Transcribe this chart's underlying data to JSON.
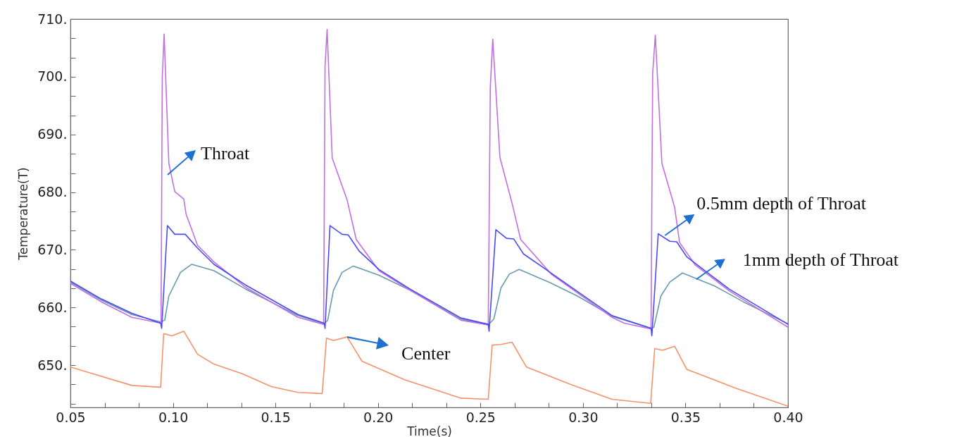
{
  "chart_data": {
    "type": "line",
    "xlabel": "Time(s)",
    "ylabel": "Temperature(T)",
    "xlim": [
      0.05,
      0.4
    ],
    "ylim": [
      642.7,
      710
    ],
    "grid": false,
    "xticks": [
      0.05,
      {
        "value": 0.0667,
        "label": null
      },
      {
        "value": 0.0833,
        "label": null
      },
      {
        "value": 0.1,
        "label": "0.10"
      },
      {
        "value": 0.1167,
        "label": null
      },
      {
        "value": 0.1333,
        "label": null
      },
      0.15,
      {
        "value": 0.1667,
        "label": null
      },
      {
        "value": 0.1833,
        "label": null
      },
      {
        "value": 0.2,
        "label": "0.20"
      },
      {
        "value": 0.2167,
        "label": null
      },
      {
        "value": 0.2333,
        "label": null
      },
      0.25,
      {
        "value": 0.2667,
        "label": null
      },
      {
        "value": 0.2833,
        "label": null
      },
      {
        "value": 0.3,
        "label": "0.30"
      },
      {
        "value": 0.3167,
        "label": null
      },
      {
        "value": 0.3333,
        "label": null
      },
      0.35,
      {
        "value": 0.3667,
        "label": null
      },
      {
        "value": 0.3833,
        "label": null
      },
      {
        "value": 0.4,
        "label": "0.40"
      }
    ],
    "yticks": [
      {
        "value": 643.3,
        "label": null
      },
      {
        "value": 646.7,
        "label": null
      },
      {
        "value": 650,
        "label": "650."
      },
      {
        "value": 653.3,
        "label": null
      },
      {
        "value": 656.7,
        "label": null
      },
      {
        "value": 660,
        "label": "660."
      },
      {
        "value": 663.3,
        "label": null
      },
      {
        "value": 666.7,
        "label": null
      },
      {
        "value": 670,
        "label": "670."
      },
      {
        "value": 673.3,
        "label": null
      },
      {
        "value": 676.7,
        "label": null
      },
      {
        "value": 680,
        "label": "680."
      },
      {
        "value": 683.3,
        "label": null
      },
      {
        "value": 686.7,
        "label": null
      },
      {
        "value": 690,
        "label": "690."
      },
      {
        "value": 693.3,
        "label": null
      },
      {
        "value": 696.7,
        "label": null
      },
      {
        "value": 700,
        "label": "700."
      },
      {
        "value": 703.3,
        "label": null
      },
      {
        "value": 706.7,
        "label": null
      },
      {
        "value": 710,
        "label": "710."
      }
    ],
    "series": [
      {
        "color": "#6a9ab0",
        "x": [
          0.05,
          0.065,
          0.08,
          0.094,
          0.096,
          0.098,
          0.1037,
          0.1092,
          0.12,
          0.1355,
          0.161,
          0.1738,
          0.1755,
          0.1783,
          0.1825,
          0.188,
          0.2005,
          0.2157,
          0.2405,
          0.2538,
          0.2565,
          0.26,
          0.2641,
          0.2689,
          0.2834,
          0.2973,
          0.3142,
          0.3332,
          0.3346,
          0.338,
          0.3423,
          0.3485,
          0.3644,
          0.3782,
          0.4
        ],
        "values": [
          664.4,
          661.3,
          658.8,
          657.5,
          657.8,
          662,
          666.1,
          667.5,
          666.4,
          663.2,
          658.6,
          657.2,
          657.8,
          663,
          666.1,
          667.2,
          665.6,
          663,
          658,
          657,
          658,
          663.4,
          665.8,
          666.6,
          664.4,
          662,
          658.5,
          656.4,
          656.6,
          662,
          664.4,
          666,
          663.7,
          661,
          657.2
        ]
      },
      {
        "color": "#c070e0",
        "x": [
          0.05,
          0.065,
          0.08,
          0.0942,
          0.0948,
          0.0957,
          0.098,
          0.1009,
          0.1053,
          0.1064,
          0.112,
          0.12,
          0.1355,
          0.161,
          0.1735,
          0.1742,
          0.1752,
          0.1777,
          0.185,
          0.1894,
          0.2005,
          0.2157,
          0.2405,
          0.2538,
          0.2548,
          0.256,
          0.2595,
          0.2654,
          0.2696,
          0.2848,
          0.3142,
          0.3201,
          0.3332,
          0.334,
          0.3353,
          0.3385,
          0.3447,
          0.3471,
          0.3547,
          0.3713,
          0.4
        ],
        "values": [
          664.2,
          661,
          658.3,
          657.3,
          699.8,
          707.4,
          685,
          680.1,
          678.8,
          676.2,
          670.8,
          667.9,
          663.5,
          658.3,
          657.1,
          701.8,
          708.2,
          685.9,
          678.6,
          671.8,
          666.4,
          663,
          657.8,
          657,
          698.2,
          706.5,
          686,
          678.1,
          671.8,
          665.7,
          658.3,
          657.3,
          656.3,
          700.6,
          707.2,
          685,
          677.4,
          671.3,
          667.4,
          662.9,
          656.6
        ]
      },
      {
        "color": "#4a4af0",
        "x": [
          0.05,
          0.065,
          0.08,
          0.094,
          0.0945,
          0.0973,
          0.1009,
          0.106,
          0.112,
          0.12,
          0.1355,
          0.161,
          0.1738,
          0.1742,
          0.1766,
          0.1825,
          0.1855,
          0.1908,
          0.2005,
          0.2157,
          0.2405,
          0.2538,
          0.2542,
          0.2575,
          0.2627,
          0.2662,
          0.271,
          0.2848,
          0.3142,
          0.3332,
          0.3336,
          0.3367,
          0.3423,
          0.3457,
          0.3506,
          0.3713,
          0.4
        ],
        "values": [
          664.6,
          661.5,
          659,
          657.3,
          656.4,
          674.2,
          672.7,
          672.7,
          670.3,
          667.5,
          663.9,
          658.8,
          657.3,
          656.4,
          674.2,
          672.7,
          672.6,
          669.8,
          666.6,
          663.2,
          658.2,
          657.1,
          655.9,
          673.5,
          672,
          671.9,
          669.3,
          665.9,
          658.6,
          656.4,
          655.1,
          672.8,
          671.5,
          671.4,
          668.8,
          663.2,
          657.1
        ]
      },
      {
        "color": "#f4926a",
        "x": [
          0.05,
          0.08,
          0.094,
          0.0955,
          0.0995,
          0.1053,
          0.112,
          0.12,
          0.134,
          0.148,
          0.161,
          0.1728,
          0.1749,
          0.1783,
          0.185,
          0.1922,
          0.213,
          0.2405,
          0.2538,
          0.2557,
          0.26,
          0.2654,
          0.2724,
          0.2945,
          0.3142,
          0.333,
          0.335,
          0.3388,
          0.3447,
          0.3506,
          0.374,
          0.4
        ],
        "values": [
          649.7,
          646.5,
          646.2,
          655.5,
          655.1,
          655.9,
          651.9,
          650.2,
          648.5,
          646.3,
          645.3,
          645.1,
          654.7,
          654.3,
          654.9,
          650.7,
          647.5,
          644.3,
          644.1,
          653.5,
          653.6,
          654,
          649.7,
          646.6,
          644.1,
          643.4,
          652.9,
          652.6,
          653.3,
          649.3,
          646.1,
          642.9
        ]
      }
    ],
    "annotations": [
      {
        "text": "Throat",
        "x": 0.0974,
        "y": 683
      },
      {
        "text": "0.5mm depth of Throat",
        "x": 0.34,
        "y": 672.5
      },
      {
        "text": "1mm depth of Throat",
        "x": 0.3553,
        "y": 664.9
      },
      {
        "text": "Center",
        "x": 0.185,
        "y": 654.9
      }
    ]
  }
}
